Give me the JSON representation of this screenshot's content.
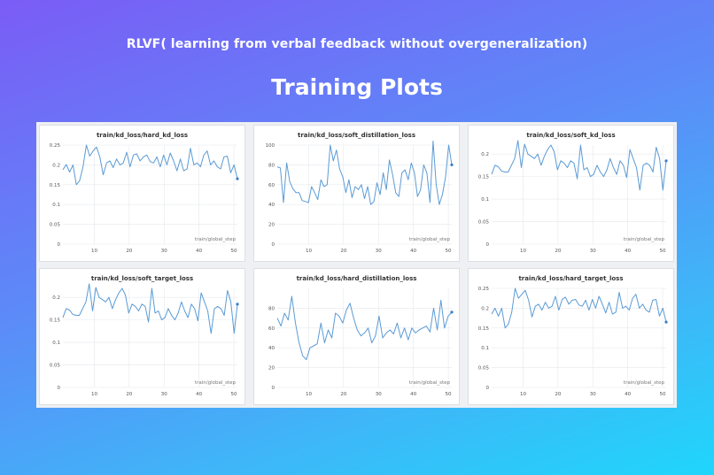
{
  "header": {
    "subtitle": "RLVF( learning from verbal feedback without overgeneralization)",
    "title": "Training Plots"
  },
  "chart_data": [
    {
      "type": "line",
      "title": "train/kd_loss/hard_kd_loss",
      "xlabel": "train/global_step",
      "ylabel": "",
      "xlim": [
        1,
        51
      ],
      "ylim": [
        0,
        0.25
      ],
      "xticks": [
        10,
        20,
        30,
        40,
        50
      ],
      "yticks": [
        {
          "v": 0,
          "label": "0"
        },
        {
          "v": 0.05,
          "label": "0.05"
        },
        {
          "v": 0.1,
          "label": "0.1"
        },
        {
          "v": 0.15,
          "label": "0.15"
        },
        {
          "v": 0.2,
          "label": "0.2"
        },
        {
          "v": 0.25,
          "label": "0.25"
        }
      ],
      "grid": true,
      "series": [
        {
          "values": [
            0.188,
            0.201,
            0.182,
            0.2,
            0.15,
            0.16,
            0.195,
            0.25,
            0.222,
            0.235,
            0.245,
            0.22,
            0.175,
            0.205,
            0.21,
            0.193,
            0.215,
            0.2,
            0.205,
            0.232,
            0.195,
            0.225,
            0.228,
            0.21,
            0.22,
            0.225,
            0.208,
            0.205,
            0.22,
            0.195,
            0.225,
            0.2,
            0.23,
            0.21,
            0.185,
            0.215,
            0.185,
            0.19,
            0.242,
            0.2,
            0.205,
            0.195,
            0.225,
            0.235,
            0.2,
            0.21,
            0.195,
            0.19,
            0.22,
            0.222,
            0.18,
            0.2,
            0.165
          ]
        }
      ]
    },
    {
      "type": "line",
      "title": "train/kd_loss/soft_distillation_loss",
      "xlabel": "train/global_step",
      "ylabel": "",
      "xlim": [
        1,
        51
      ],
      "ylim": [
        0,
        100
      ],
      "xticks": [
        10,
        20,
        30,
        40,
        50
      ],
      "yticks": [
        {
          "v": 0,
          "label": "0"
        },
        {
          "v": 20,
          "label": "20"
        },
        {
          "v": 40,
          "label": "40"
        },
        {
          "v": 60,
          "label": "60"
        },
        {
          "v": 80,
          "label": "80"
        },
        {
          "v": 100,
          "label": "100"
        }
      ],
      "grid": true,
      "series": [
        {
          "values": [
            78,
            77,
            42,
            82,
            63,
            56,
            52,
            52,
            44,
            43,
            42,
            58,
            52,
            45,
            65,
            58,
            60,
            100,
            84,
            95,
            76,
            68,
            52,
            65,
            47,
            58,
            55,
            60,
            46,
            58,
            40,
            43,
            62,
            50,
            72,
            55,
            85,
            70,
            52,
            48,
            72,
            75,
            65,
            82,
            72,
            48,
            55,
            80,
            72,
            42,
            104,
            60,
            40,
            50,
            68,
            100,
            80
          ]
        }
      ]
    },
    {
      "type": "line",
      "title": "train/kd_loss/soft_kd_loss",
      "xlabel": "train/global_step",
      "ylabel": "",
      "xlim": [
        1,
        51
      ],
      "ylim": [
        0,
        0.22
      ],
      "xticks": [
        10,
        20,
        30,
        40,
        50
      ],
      "yticks": [
        {
          "v": 0,
          "label": "0"
        },
        {
          "v": 0.05,
          "label": "0.05"
        },
        {
          "v": 0.1,
          "label": "0.1"
        },
        {
          "v": 0.15,
          "label": "0.15"
        },
        {
          "v": 0.2,
          "label": "0.2"
        }
      ],
      "grid": true,
      "series": [
        {
          "values": [
            0.155,
            0.175,
            0.172,
            0.162,
            0.16,
            0.16,
            0.175,
            0.19,
            0.23,
            0.17,
            0.222,
            0.2,
            0.195,
            0.19,
            0.2,
            0.175,
            0.195,
            0.21,
            0.22,
            0.205,
            0.165,
            0.185,
            0.18,
            0.17,
            0.185,
            0.18,
            0.145,
            0.22,
            0.165,
            0.17,
            0.15,
            0.155,
            0.175,
            0.16,
            0.15,
            0.165,
            0.19,
            0.17,
            0.155,
            0.185,
            0.175,
            0.148,
            0.21,
            0.19,
            0.17,
            0.12,
            0.175,
            0.18,
            0.175,
            0.16,
            0.215,
            0.19,
            0.12,
            0.185
          ]
        }
      ]
    },
    {
      "type": "line",
      "title": "train/kd_loss/soft_target_loss",
      "xlabel": "train/global_step",
      "ylabel": "",
      "xlim": [
        1,
        51
      ],
      "ylim": [
        0,
        0.22
      ],
      "xticks": [
        10,
        20,
        30,
        40,
        50
      ],
      "yticks": [
        {
          "v": 0,
          "label": "0"
        },
        {
          "v": 0.05,
          "label": "0.05"
        },
        {
          "v": 0.1,
          "label": "0.1"
        },
        {
          "v": 0.15,
          "label": "0.15"
        },
        {
          "v": 0.2,
          "label": "0.2"
        }
      ],
      "grid": true,
      "series": [
        {
          "values": [
            0.155,
            0.175,
            0.172,
            0.162,
            0.16,
            0.16,
            0.175,
            0.19,
            0.23,
            0.17,
            0.222,
            0.2,
            0.195,
            0.19,
            0.2,
            0.175,
            0.195,
            0.21,
            0.22,
            0.205,
            0.165,
            0.185,
            0.18,
            0.17,
            0.185,
            0.18,
            0.145,
            0.22,
            0.165,
            0.17,
            0.15,
            0.155,
            0.175,
            0.16,
            0.15,
            0.165,
            0.19,
            0.17,
            0.155,
            0.185,
            0.175,
            0.148,
            0.21,
            0.19,
            0.17,
            0.12,
            0.175,
            0.18,
            0.175,
            0.16,
            0.215,
            0.19,
            0.12,
            0.185
          ]
        }
      ]
    },
    {
      "type": "line",
      "title": "train/kd_loss/hard_distillation_loss",
      "xlabel": "train/global_step",
      "ylabel": "",
      "xlim": [
        1,
        51
      ],
      "ylim": [
        0,
        100
      ],
      "xticks": [
        10,
        20,
        30,
        40,
        50
      ],
      "yticks": [
        {
          "v": 0,
          "label": "0"
        },
        {
          "v": 20,
          "label": "20"
        },
        {
          "v": 40,
          "label": "40"
        },
        {
          "v": 60,
          "label": "60"
        },
        {
          "v": 80,
          "label": "80"
        }
      ],
      "grid": true,
      "series": [
        {
          "values": [
            70,
            62,
            75,
            68,
            92,
            65,
            45,
            32,
            28,
            40,
            42,
            44,
            65,
            45,
            58,
            50,
            75,
            72,
            65,
            78,
            85,
            70,
            58,
            52,
            55,
            60,
            45,
            52,
            72,
            50,
            55,
            58,
            54,
            65,
            50,
            60,
            48,
            60,
            55,
            58,
            60,
            62,
            56,
            80,
            58,
            88,
            60,
            72,
            76
          ]
        }
      ]
    },
    {
      "type": "line",
      "title": "train/kd_loss/hard_target_loss",
      "xlabel": "train/global_step",
      "ylabel": "",
      "xlim": [
        1,
        51
      ],
      "ylim": [
        0,
        0.25
      ],
      "xticks": [
        10,
        20,
        30,
        40,
        50
      ],
      "yticks": [
        {
          "v": 0,
          "label": "0"
        },
        {
          "v": 0.05,
          "label": "0.05"
        },
        {
          "v": 0.1,
          "label": "0.1"
        },
        {
          "v": 0.15,
          "label": "0.15"
        },
        {
          "v": 0.2,
          "label": "0.2"
        },
        {
          "v": 0.25,
          "label": "0.25"
        }
      ],
      "grid": true,
      "series": [
        {
          "values": [
            0.185,
            0.2,
            0.18,
            0.2,
            0.15,
            0.16,
            0.19,
            0.25,
            0.225,
            0.235,
            0.245,
            0.22,
            0.178,
            0.205,
            0.21,
            0.195,
            0.215,
            0.2,
            0.205,
            0.23,
            0.195,
            0.222,
            0.228,
            0.21,
            0.22,
            0.222,
            0.208,
            0.205,
            0.22,
            0.195,
            0.222,
            0.2,
            0.23,
            0.21,
            0.188,
            0.215,
            0.185,
            0.19,
            0.24,
            0.2,
            0.205,
            0.195,
            0.225,
            0.235,
            0.2,
            0.21,
            0.195,
            0.19,
            0.22,
            0.222,
            0.18,
            0.2,
            0.165
          ]
        }
      ]
    }
  ]
}
